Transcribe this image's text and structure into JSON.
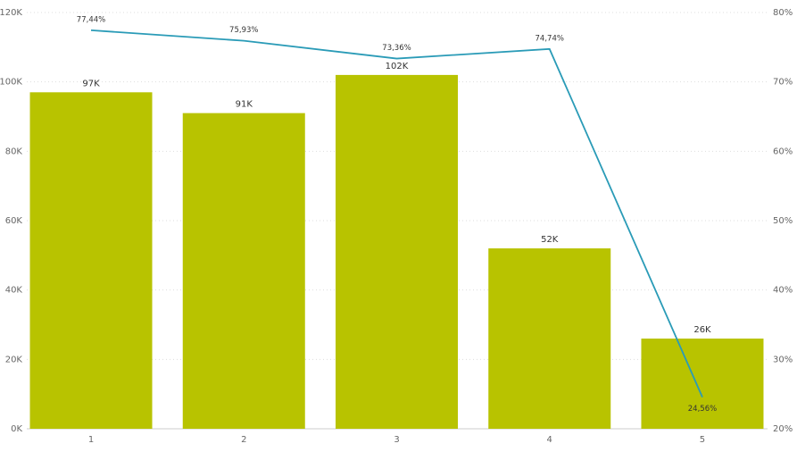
{
  "chart_data": {
    "type": "bar",
    "categories": [
      "1",
      "2",
      "3",
      "4",
      "5"
    ],
    "series": [
      {
        "type": "bar",
        "color": "#b8c300",
        "values": [
          97000,
          91000,
          102000,
          52000,
          26000
        ],
        "value_labels": [
          "97K",
          "91K",
          "102K",
          "52K",
          "26K"
        ]
      },
      {
        "type": "line",
        "axis": "y2",
        "color": "#2a9bb7",
        "values": [
          77.44,
          75.93,
          73.36,
          74.74,
          24.56
        ],
        "value_labels": [
          "77,44%",
          "75,93%",
          "73,36%",
          "74,74%",
          "24,56%"
        ]
      }
    ],
    "ylim": [
      0,
      120000
    ],
    "yticks": [
      {
        "value": 0,
        "label": "0K"
      },
      {
        "value": 20000,
        "label": "20K"
      },
      {
        "value": 40000,
        "label": "40K"
      },
      {
        "value": 60000,
        "label": "60K"
      },
      {
        "value": 80000,
        "label": "80K"
      },
      {
        "value": 100000,
        "label": "100K"
      },
      {
        "value": 120000,
        "label": "120K"
      }
    ],
    "y2lim": [
      20,
      80
    ],
    "y2ticks": [
      {
        "value": 20,
        "label": "20%"
      },
      {
        "value": 30,
        "label": "30%"
      },
      {
        "value": 40,
        "label": "40%"
      },
      {
        "value": 50,
        "label": "50%"
      },
      {
        "value": 60,
        "label": "60%"
      },
      {
        "value": 70,
        "label": "70%"
      },
      {
        "value": 80,
        "label": "80%"
      }
    ],
    "grid": true
  }
}
